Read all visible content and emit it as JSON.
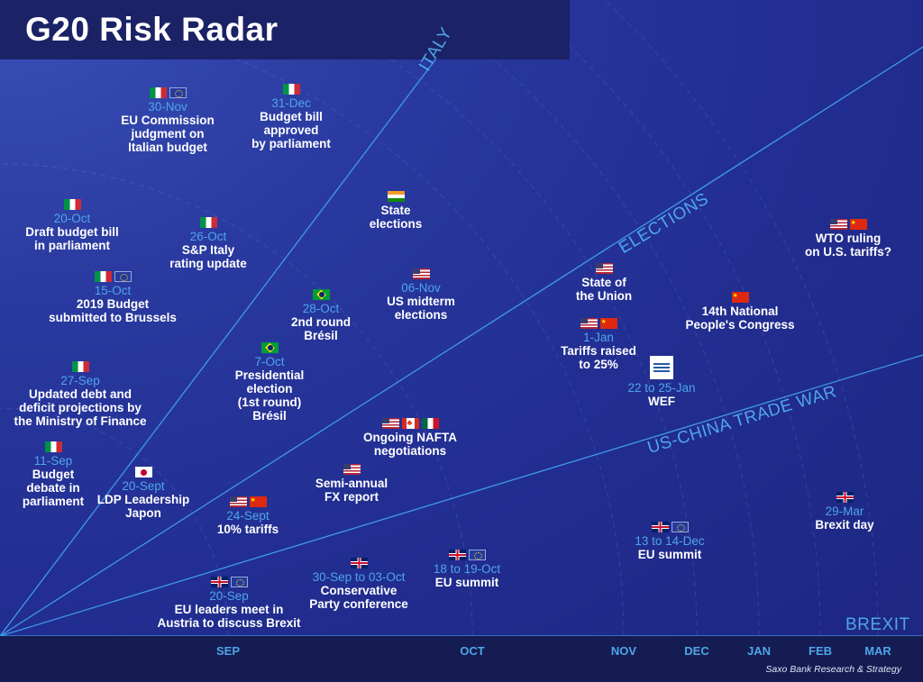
{
  "title": "G20 Risk Radar",
  "source": "Saxo Bank Research & Strategy",
  "colors": {
    "background": "#222e92",
    "accent": "#4ea6e8",
    "text": "#ffffff",
    "title_bar": "#1b2266",
    "axis_bar": "#151c52"
  },
  "chart_data": {
    "type": "radar-timeline",
    "x_axis": {
      "ticks": [
        "SEP",
        "OCT",
        "NOV",
        "DEC",
        "JAN",
        "FEB",
        "MAR"
      ]
    },
    "sectors": [
      "ITALY",
      "ELECTIONS",
      "US-CHINA TRADE WAR",
      "BREXIT"
    ],
    "events": [
      {
        "sector": "ITALY",
        "date": "30-Nov",
        "text": "EU Commission\njudgment on\nItalian budget",
        "flags": [
          "it",
          "eu"
        ]
      },
      {
        "sector": "ITALY",
        "date": "31-Dec",
        "text": "Budget bill\napproved\nby parliament",
        "flags": [
          "it"
        ]
      },
      {
        "sector": "ITALY",
        "date": "20-Oct",
        "text": "Draft budget bill\nin parliament",
        "flags": [
          "it"
        ]
      },
      {
        "sector": "ITALY",
        "date": "26-Oct",
        "text": "S&P Italy\nrating update",
        "flags": [
          "it"
        ]
      },
      {
        "sector": "ITALY",
        "date": "15-Oct",
        "text": "2019 Budget\nsubmitted to Brussels",
        "flags": [
          "it",
          "eu"
        ]
      },
      {
        "sector": "ITALY",
        "date": "27-Sep",
        "text": "Updated debt and\ndeficit projections by\nthe Ministry of Finance",
        "flags": [
          "it"
        ]
      },
      {
        "sector": "ITALY",
        "date": "11-Sep",
        "text": "Budget\ndebate in\nparliament",
        "flags": [
          "it"
        ]
      },
      {
        "sector": "ELECTIONS",
        "date": "",
        "text": "State\nelections",
        "flags": [
          "in"
        ]
      },
      {
        "sector": "ELECTIONS",
        "date": "06-Nov",
        "text": "US midterm\nelections",
        "flags": [
          "us"
        ]
      },
      {
        "sector": "ELECTIONS",
        "date": "28-Oct",
        "text": "2nd round\nBrésil",
        "flags": [
          "br"
        ]
      },
      {
        "sector": "ELECTIONS",
        "date": "7-Oct",
        "text": "Presidential\nelection\n(1st round)\nBrésil",
        "flags": [
          "br"
        ]
      },
      {
        "sector": "ELECTIONS",
        "date": "20-Sept",
        "text": "LDP Leadership\nJapon",
        "flags": [
          "jp"
        ]
      },
      {
        "sector": "ELECTIONS",
        "date": "",
        "text": "State of\nthe Union",
        "flags": [
          "us"
        ]
      },
      {
        "sector": "US-CHINA TRADE WAR",
        "date": "",
        "text": "WTO ruling\non U.S. tariffs?",
        "flags": [
          "us",
          "cn"
        ]
      },
      {
        "sector": "US-CHINA TRADE WAR",
        "date": "",
        "text": "14th National\nPeople's Congress",
        "flags": [
          "cn"
        ]
      },
      {
        "sector": "US-CHINA TRADE WAR",
        "date": "1-Jan",
        "text": "Tariffs raised\nto 25%",
        "flags": [
          "us",
          "cn"
        ]
      },
      {
        "sector": "US-CHINA TRADE WAR",
        "date": "22 to 25-Jan",
        "text": "WEF",
        "flags": [
          "wef"
        ]
      },
      {
        "sector": "US-CHINA TRADE WAR",
        "date": "",
        "text": "Ongoing NAFTA\nnegotiations",
        "flags": [
          "us",
          "ca",
          "mx"
        ]
      },
      {
        "sector": "US-CHINA TRADE WAR",
        "date": "",
        "text": "Semi-annual\nFX report",
        "flags": [
          "us"
        ]
      },
      {
        "sector": "US-CHINA TRADE WAR",
        "date": "24-Sept",
        "text": "10% tariffs",
        "flags": [
          "us",
          "cn"
        ]
      },
      {
        "sector": "BREXIT",
        "date": "20-Sep",
        "text": "EU leaders meet in\nAustria to discuss Brexit",
        "flags": [
          "uk",
          "eu"
        ]
      },
      {
        "sector": "BREXIT",
        "date": "30-Sep to 03-Oct",
        "text": "Conservative\nParty conference",
        "flags": [
          "uk"
        ]
      },
      {
        "sector": "BREXIT",
        "date": "18 to 19-Oct",
        "text": "EU summit",
        "flags": [
          "uk",
          "eu"
        ]
      },
      {
        "sector": "BREXIT",
        "date": "13 to 14-Dec",
        "text": "EU summit",
        "flags": [
          "uk",
          "eu"
        ]
      },
      {
        "sector": "BREXIT",
        "date": "29-Mar",
        "text": "Brexit day",
        "flags": [
          "uk"
        ]
      }
    ]
  }
}
